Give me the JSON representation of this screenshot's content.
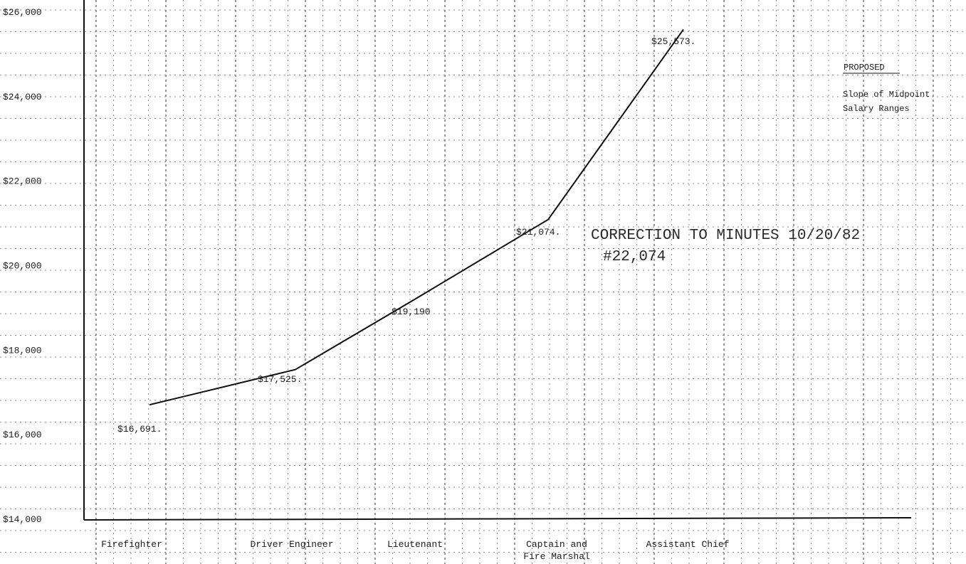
{
  "chart_data": {
    "type": "line",
    "categories": [
      "Firefighter",
      "Driver Engineer",
      "Lieutenant",
      "Captain and Fire Marshal",
      "Assistant Chief"
    ],
    "category_lines": [
      [
        "Firefighter"
      ],
      [
        "Driver Engineer"
      ],
      [
        "Lieutenant"
      ],
      [
        "Captain and",
        "Fire Marshal"
      ],
      [
        "Assistant Chief"
      ]
    ],
    "values": [
      16691,
      17525,
      19190,
      21074,
      25573
    ],
    "data_labels": [
      "$16,691.",
      "$17,525.",
      "$19,190",
      "$21,074.",
      "$25,573."
    ],
    "yticks": [
      14000,
      16000,
      18000,
      20000,
      22000,
      24000,
      26000
    ],
    "ytick_labels": [
      "$14,000",
      "$16,000",
      "$18,000",
      "$20,000",
      "$22,000",
      "$24,000",
      "$26,000"
    ],
    "ylim": [
      14000,
      26000
    ],
    "grid": true
  },
  "annotations": {
    "heading": "PROPOSED",
    "note_line1": "Slope of Midpoint",
    "note_line2": "Salary Ranges",
    "correction_line1": "CORRECTION TO MINUTES 10/20/82",
    "correction_line2": "#22,074"
  }
}
